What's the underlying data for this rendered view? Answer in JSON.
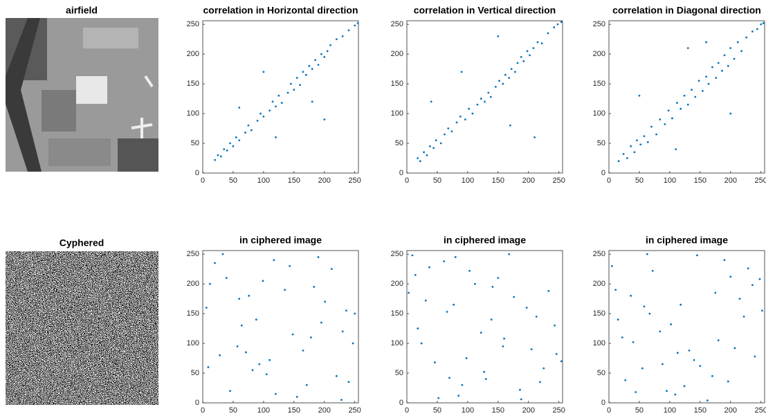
{
  "images": [
    {
      "title": "airfield"
    },
    {
      "title": "Cyphered"
    }
  ],
  "chart_data": [
    {
      "type": "scatter",
      "title": "correlation in Horizontal direction",
      "color": "#0072bd",
      "xlim": [
        0,
        256
      ],
      "ylim": [
        0,
        256
      ],
      "xticks": [
        0,
        50,
        100,
        150,
        200,
        250
      ],
      "yticks": [
        0,
        50,
        100,
        150,
        200,
        250
      ],
      "x": [
        20,
        25,
        30,
        35,
        40,
        45,
        50,
        55,
        60,
        70,
        75,
        80,
        90,
        95,
        100,
        110,
        115,
        120,
        125,
        130,
        140,
        145,
        150,
        155,
        160,
        165,
        170,
        175,
        180,
        185,
        190,
        195,
        200,
        205,
        210,
        220,
        230,
        240,
        250,
        255,
        60,
        120,
        180,
        100,
        200
      ],
      "values": [
        22,
        30,
        28,
        40,
        38,
        50,
        45,
        60,
        55,
        68,
        80,
        72,
        88,
        100,
        95,
        105,
        120,
        112,
        130,
        118,
        135,
        150,
        140,
        160,
        148,
        170,
        165,
        180,
        175,
        190,
        182,
        200,
        195,
        205,
        215,
        225,
        230,
        240,
        248,
        252,
        110,
        60,
        120,
        170,
        90
      ]
    },
    {
      "type": "scatter",
      "title": "correlation in Vertical direction",
      "color": "#0072bd",
      "xlim": [
        0,
        256
      ],
      "ylim": [
        0,
        256
      ],
      "xticks": [
        0,
        50,
        100,
        150,
        200,
        250
      ],
      "yticks": [
        0,
        50,
        100,
        150,
        200,
        250
      ],
      "x": [
        18,
        22,
        28,
        33,
        38,
        44,
        48,
        56,
        62,
        68,
        74,
        82,
        88,
        96,
        102,
        108,
        116,
        122,
        128,
        134,
        138,
        146,
        152,
        158,
        162,
        168,
        172,
        178,
        182,
        188,
        192,
        198,
        202,
        208,
        215,
        222,
        232,
        242,
        248,
        254,
        40,
        90,
        150,
        210,
        170
      ],
      "values": [
        25,
        20,
        35,
        30,
        45,
        42,
        55,
        50,
        65,
        75,
        70,
        85,
        95,
        90,
        108,
        100,
        115,
        125,
        120,
        135,
        128,
        145,
        155,
        150,
        165,
        160,
        175,
        170,
        185,
        195,
        188,
        205,
        198,
        210,
        220,
        218,
        235,
        245,
        250,
        254,
        120,
        170,
        230,
        60,
        80
      ]
    },
    {
      "type": "scatter",
      "title": "correlation in Diagonal direction",
      "color": "#0072bd",
      "xlim": [
        0,
        256
      ],
      "ylim": [
        0,
        256
      ],
      "xticks": [
        0,
        50,
        100,
        150,
        200,
        250
      ],
      "yticks": [
        0,
        50,
        100,
        150,
        200,
        250
      ],
      "x": [
        16,
        24,
        30,
        36,
        42,
        46,
        52,
        58,
        64,
        70,
        78,
        84,
        92,
        98,
        104,
        112,
        118,
        124,
        130,
        136,
        142,
        148,
        154,
        160,
        164,
        170,
        176,
        180,
        186,
        190,
        196,
        200,
        206,
        212,
        218,
        226,
        236,
        244,
        250,
        254,
        50,
        110,
        160,
        200,
        130
      ],
      "values": [
        20,
        32,
        25,
        45,
        35,
        55,
        48,
        62,
        52,
        78,
        65,
        90,
        82,
        105,
        92,
        118,
        108,
        130,
        115,
        140,
        128,
        155,
        138,
        162,
        150,
        178,
        160,
        185,
        172,
        198,
        180,
        210,
        192,
        220,
        205,
        228,
        238,
        242,
        250,
        252,
        130,
        40,
        220,
        100,
        210
      ]
    },
    {
      "type": "scatter",
      "title": "in ciphered image",
      "color": "#0072bd",
      "xlim": [
        0,
        256
      ],
      "ylim": [
        0,
        256
      ],
      "xticks": [
        0,
        50,
        100,
        150,
        200,
        250
      ],
      "yticks": [
        0,
        50,
        100,
        150,
        200,
        250
      ],
      "x": [
        12,
        240,
        88,
        165,
        33,
        201,
        120,
        57,
        143,
        230,
        9,
        76,
        190,
        110,
        250,
        45,
        178,
        99,
        220,
        64,
        135,
        28,
        155,
        212,
        82,
        6,
        247,
        117,
        171,
        39,
        195,
        93,
        60,
        228,
        148,
        20,
        105,
        183,
        71,
        236
      ],
      "values": [
        200,
        35,
        140,
        88,
        250,
        170,
        15,
        95,
        230,
        120,
        60,
        180,
        245,
        72,
        150,
        20,
        110,
        205,
        45,
        130,
        190,
        80,
        10,
        225,
        55,
        160,
        100,
        240,
        30,
        210,
        135,
        65,
        175,
        5,
        115,
        235,
        48,
        195,
        85,
        155
      ]
    },
    {
      "type": "scatter",
      "title": "in ciphered image",
      "color": "#0072bd",
      "xlim": [
        0,
        256
      ],
      "ylim": [
        0,
        256
      ],
      "xticks": [
        0,
        50,
        100,
        150,
        200,
        250
      ],
      "yticks": [
        0,
        50,
        100,
        150,
        200,
        250
      ],
      "x": [
        205,
        14,
        130,
        77,
        243,
        52,
        168,
        98,
        3,
        186,
        139,
        61,
        225,
        24,
        112,
        197,
        85,
        158,
        37,
        254,
        70,
        176,
        122,
        9,
        213,
        46,
        150,
        91,
        233,
        18,
        127,
        66,
        188,
        103,
        246,
        31,
        160,
        80,
        219,
        141
      ],
      "values": [
        90,
        215,
        40,
        165,
        130,
        8,
        250,
        75,
        185,
        22,
        140,
        238,
        58,
        100,
        200,
        160,
        12,
        95,
        228,
        70,
        42,
        178,
        118,
        248,
        145,
        68,
        210,
        30,
        188,
        125,
        52,
        153,
        6,
        222,
        82,
        172,
        108,
        245,
        35,
        195
      ]
    },
    {
      "type": "scatter",
      "title": "in ciphered image",
      "color": "#0072bd",
      "xlim": [
        0,
        256
      ],
      "ylim": [
        0,
        256
      ],
      "xticks": [
        0,
        50,
        100,
        150,
        200,
        250
      ],
      "yticks": [
        0,
        50,
        100,
        150,
        200,
        250
      ],
      "x": [
        150,
        36,
        222,
        95,
        5,
        180,
        63,
        240,
        118,
        27,
        200,
        84,
        162,
        11,
        132,
        252,
        55,
        190,
        102,
        44,
        215,
        140,
        72,
        170,
        22,
        236,
        109,
        58,
        207,
        145,
        15,
        124,
        248,
        88,
        175,
        40,
        196,
        67,
        229,
        113
      ],
      "values": [
        62,
        180,
        145,
        20,
        230,
        105,
        250,
        78,
        165,
        38,
        212,
        120,
        4,
        190,
        88,
        155,
        58,
        240,
        132,
        18,
        175,
        72,
        222,
        45,
        110,
        198,
        14,
        162,
        92,
        248,
        140,
        28,
        208,
        65,
        185,
        102,
        36,
        150,
        226,
        84
      ]
    }
  ]
}
